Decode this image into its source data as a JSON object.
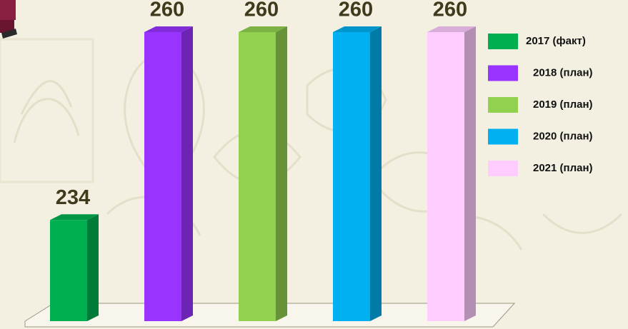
{
  "chart_data": {
    "type": "bar",
    "categories": [
      null
    ],
    "series": [
      {
        "name": "2017 (факт)",
        "color": "#00b050",
        "values": [
          234
        ]
      },
      {
        "name": "2018 (план)",
        "color": "#9933ff",
        "values": [
          260
        ]
      },
      {
        "name": "2019 (план)",
        "color": "#92d050",
        "values": [
          260
        ]
      },
      {
        "name": "2020 (план)",
        "color": "#00b0f0",
        "values": [
          260
        ]
      },
      {
        "name": "2021 (план)",
        "color": "#ffccff",
        "values": [
          260
        ]
      }
    ],
    "ylim": [
      220,
      260
    ],
    "legend": "right"
  }
}
